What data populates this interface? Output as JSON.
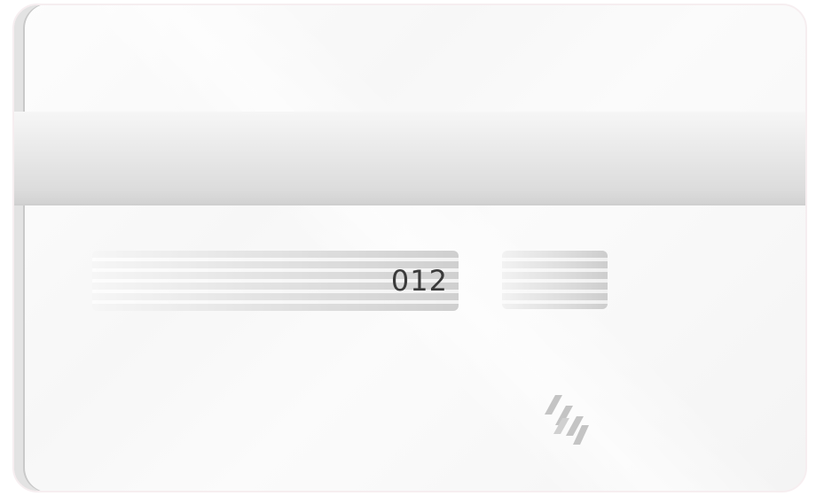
{
  "card": {
    "side": "back",
    "cvv": "012"
  },
  "icons": {
    "logo": "stripes-logo-icon"
  },
  "colors": {
    "card_background": "#f7f7f7",
    "stripe": "#dcdcdc",
    "text": "#3a3a3a"
  }
}
